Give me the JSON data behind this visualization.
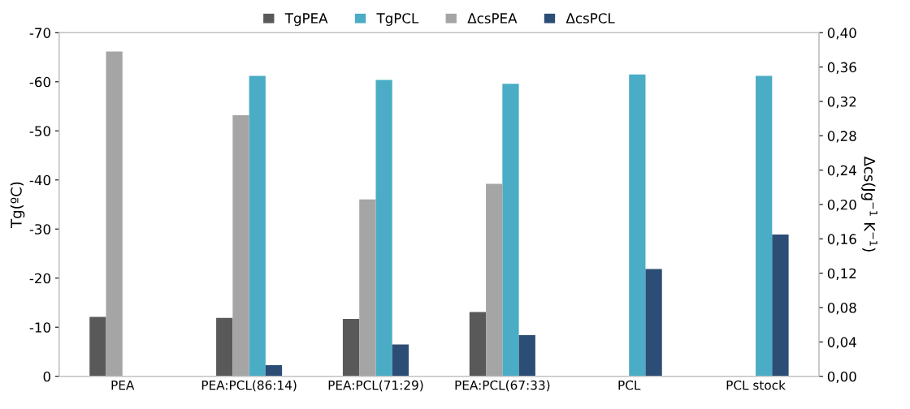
{
  "chart_data": {
    "type": "bar",
    "categories": [
      "PEA",
      "PEA:PCL(86:14)",
      "PEA:PCL(71:29)",
      "PEA:PCL(67:33)",
      "PCL",
      "PCL stock"
    ],
    "series": [
      {
        "name": "TgPEA",
        "color": "#595959",
        "values": [
          -12.1,
          -11.9,
          -11.7,
          -13.1,
          null,
          null
        ]
      },
      {
        "name": "TgPCL",
        "color": "#4bacc6",
        "values": [
          null,
          -61.2,
          -60.4,
          -59.6,
          -61.5,
          -61.2
        ]
      },
      {
        "name": "ΔcsPEA",
        "color": "#a5a5a5",
        "axis": "y2",
        "values": [
          0.378,
          0.304,
          0.206,
          0.224,
          null,
          null
        ]
      },
      {
        "name": "ΔcsPCL",
        "color": "#2c4d75",
        "axis": "y2",
        "values": [
          null,
          0.013,
          0.037,
          0.048,
          0.125,
          0.165
        ]
      }
    ],
    "ylabel": "Tg(ºC)",
    "y2label": "Δcs(Jg$^{−1}$ K$^{−1}$)",
    "ylim": [
      0,
      -70
    ],
    "yticks": [
      0,
      -10,
      -20,
      -30,
      -40,
      -50,
      -60,
      -70
    ],
    "y2lim": [
      0,
      0.4
    ],
    "y2ticks": [
      {
        "value": 0,
        "label": "0,00"
      },
      {
        "value": 0.04,
        "label": "0,04"
      },
      {
        "value": 0.08,
        "label": "0,08"
      },
      {
        "value": 0.12,
        "label": "0,12"
      },
      {
        "value": 0.16,
        "label": "0,16"
      },
      {
        "value": 0.2,
        "label": "0,20"
      },
      {
        "value": 0.24,
        "label": "0,24"
      },
      {
        "value": 0.28,
        "label": "0,28"
      },
      {
        "value": 0.32,
        "label": "0,32"
      },
      {
        "value": 0.36,
        "label": "0,36"
      },
      {
        "value": 0.4,
        "label": "0,40"
      }
    ],
    "legend": "top",
    "grid": false
  }
}
